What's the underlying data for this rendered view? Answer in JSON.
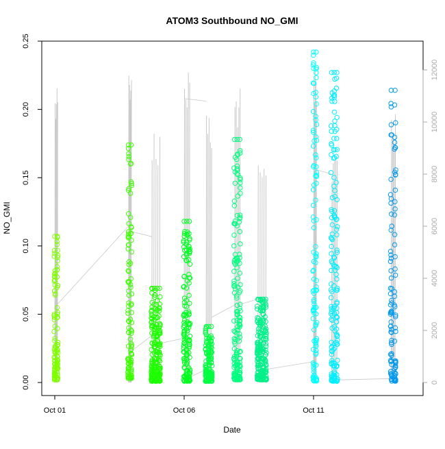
{
  "chart_data": {
    "type": "scatter",
    "title": "ATOM3 Southbound NO_GMI",
    "xlabel": "Date",
    "ylabel": "NO_GMI",
    "ylim": [
      0,
      0.25
    ],
    "yticks": [
      "0.00",
      "0.05",
      "0.10",
      "0.15",
      "0.20",
      "0.25"
    ],
    "y2lim": [
      0,
      12000
    ],
    "y2ticks": [
      "0",
      "2000",
      "4000",
      "6000",
      "8000",
      "10000",
      "12000"
    ],
    "xlim": [
      0.0,
      15.0
    ],
    "xticks": [
      {
        "label": "Oct 01",
        "day": 1
      },
      {
        "label": "Oct 06",
        "day": 6
      },
      {
        "label": "Oct 11",
        "day": 11
      }
    ],
    "grid": false,
    "series": [
      {
        "day_start": 1.0,
        "day_end": 1.1,
        "color": "#7FFF00",
        "no_min": 0.002,
        "no_max": 0.107,
        "alt_max": 11300
      },
      {
        "day_start": 3.85,
        "day_end": 3.95,
        "color": "#3FFF00",
        "no_min": 0.003,
        "no_max": 0.174,
        "alt_max": 11800
      },
      {
        "day_start": 4.75,
        "day_end": 5.05,
        "color": "#1FFF00",
        "no_min": 0.001,
        "no_max": 0.069,
        "alt_max": 9800
      },
      {
        "day_start": 6.0,
        "day_end": 6.2,
        "color": "#00FF20",
        "no_min": 0.001,
        "no_max": 0.118,
        "alt_max": 11900
      },
      {
        "day_start": 6.85,
        "day_end": 7.05,
        "color": "#00FF40",
        "no_min": 0.001,
        "no_max": 0.041,
        "alt_max": 10500
      },
      {
        "day_start": 7.95,
        "day_end": 8.15,
        "color": "#00FF7F",
        "no_min": 0.002,
        "no_max": 0.178,
        "alt_max": 11500
      },
      {
        "day_start": 8.85,
        "day_end": 9.15,
        "color": "#00F08A",
        "no_min": 0.002,
        "no_max": 0.061,
        "alt_max": 9100
      },
      {
        "day_start": 11.0,
        "day_end": 11.1,
        "color": "#00FFFF",
        "no_min": 0.001,
        "no_max": 0.242,
        "alt_max": 12000
      },
      {
        "day_start": 11.7,
        "day_end": 11.9,
        "color": "#00EEFF",
        "no_min": 0.001,
        "no_max": 0.227,
        "alt_max": 8700
      },
      {
        "day_start": 14.0,
        "day_end": 14.15,
        "color": "#0099EE",
        "no_min": 0.001,
        "no_max": 0.214,
        "alt_max": 10300
      }
    ],
    "altitude_transits": [
      {
        "x1": 1.1,
        "y1": 3000,
        "x2": 3.85,
        "y2": 6000
      },
      {
        "x1": 3.95,
        "y1": 5800,
        "x2": 4.75,
        "y2": 5600
      },
      {
        "x1": 3.95,
        "y1": 1200,
        "x2": 4.75,
        "y2": 1800
      },
      {
        "x1": 5.05,
        "y1": 1500,
        "x2": 6.0,
        "y2": 1700
      },
      {
        "x1": 6.0,
        "y1": 10900,
        "x2": 6.85,
        "y2": 10800
      },
      {
        "x1": 6.2,
        "y1": 200,
        "x2": 6.85,
        "y2": 500
      },
      {
        "x1": 7.05,
        "y1": 2500,
        "x2": 8.0,
        "y2": 3000
      },
      {
        "x1": 8.15,
        "y1": 3000,
        "x2": 8.85,
        "y2": 3200
      },
      {
        "x1": 9.15,
        "y1": 500,
        "x2": 11.0,
        "y2": 800
      },
      {
        "x1": 11.0,
        "y1": 8200,
        "x2": 11.7,
        "y2": 8000
      },
      {
        "x1": 11.9,
        "y1": 100,
        "x2": 14.0,
        "y2": 150
      }
    ],
    "colors": {
      "altitude_line": "#c8c8c8",
      "axis": "#000000",
      "right_axis": "#a9a9a9"
    }
  }
}
